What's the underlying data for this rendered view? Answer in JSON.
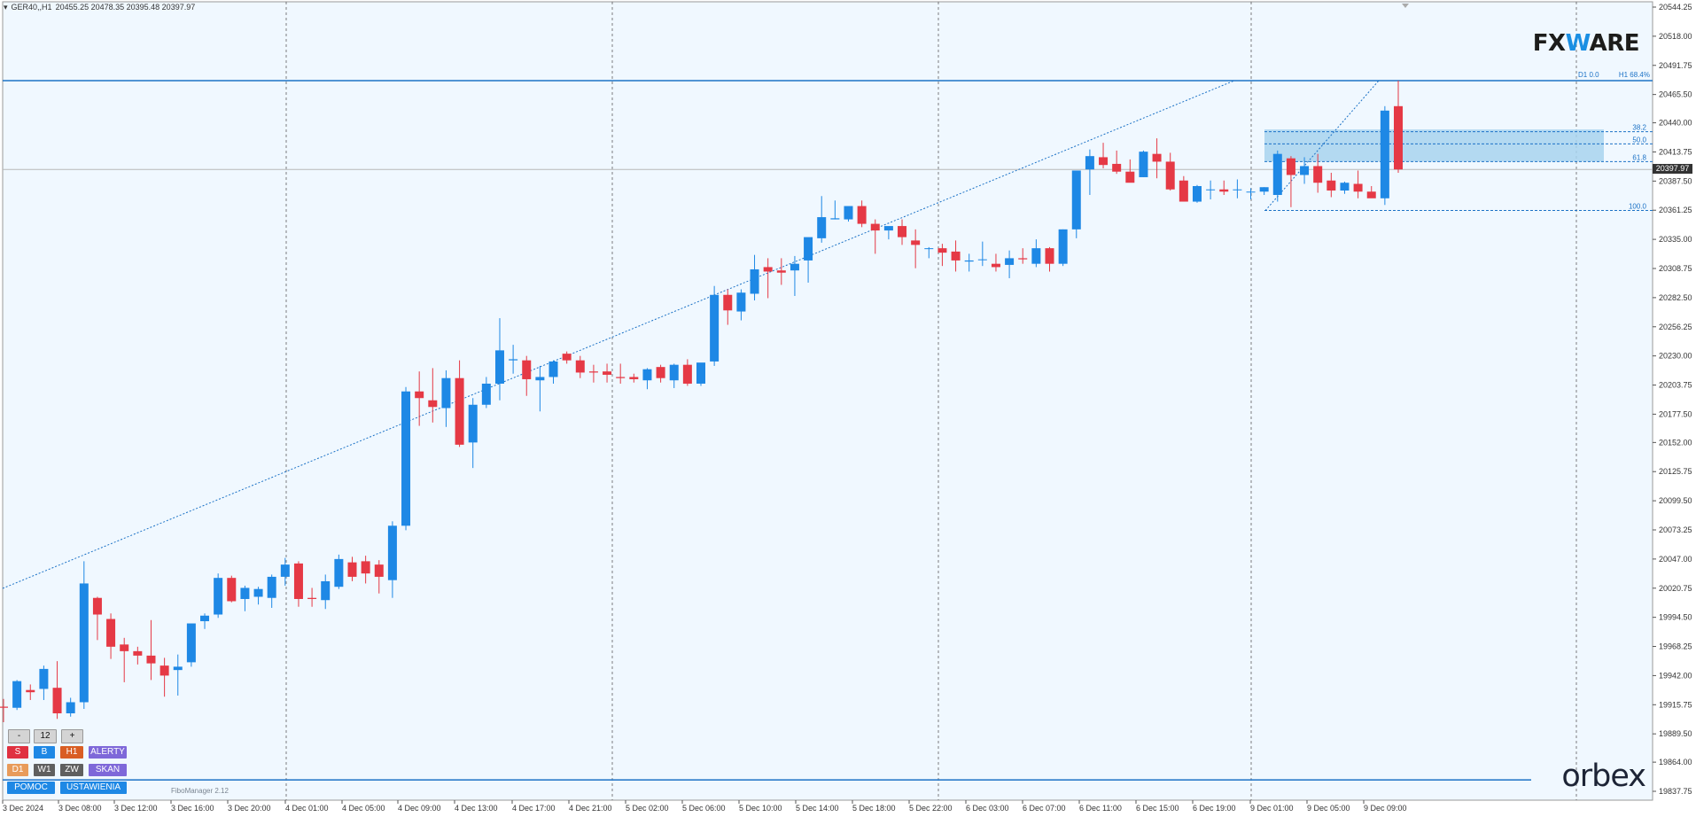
{
  "header": {
    "symbol": "GER40,,H1",
    "quote": "20455.25 20478.35 20395.48 20397.97"
  },
  "logos": {
    "top_right_prefix": "FX",
    "top_right_accent": "W",
    "top_right_suffix": "ARE",
    "bottom_right": "orbex"
  },
  "colors": {
    "background": "#f0f8ff",
    "bull": "#1e88e5",
    "bear": "#e53945",
    "grid": "#4a4a4a",
    "fib_line": "#1c72c6",
    "fib_zone": "#a8d4ef",
    "price_line": "#b8b8b8",
    "panel_red": "#e03140",
    "panel_blue": "#1e88e5",
    "panel_orange": "#d95e23",
    "panel_purple": "#7e68d9",
    "panel_peach": "#e89b5a",
    "panel_gray": "#5f5f5f"
  },
  "panel": {
    "minus": "-",
    "count": "12",
    "plus": "+",
    "sell": "S",
    "buy": "B",
    "tf_h1": "H1",
    "alerts": "ALERTY",
    "tf_d1": "D1",
    "tf_w1": "W1",
    "zw": "ZW",
    "scan": "SKAN",
    "help": "POMOC",
    "settings": "USTAWIENIA",
    "fibo_manager": "FiboManager 2.12"
  },
  "chart_data": {
    "type": "candlestick",
    "timeframe": "H1",
    "ylim": [
      19825,
      20555
    ],
    "y_ticks": [
      "20544.25",
      "20518.00",
      "20491.75",
      "20465.50",
      "20440.00",
      "20413.75",
      "20387.50",
      "20361.25",
      "20335.00",
      "20308.75",
      "20282.50",
      "20256.25",
      "20230.00",
      "20203.75",
      "20177.50",
      "20152.00",
      "20125.75",
      "20099.50",
      "20073.25",
      "20047.00",
      "20020.75",
      "19994.50",
      "19968.25",
      "19942.00",
      "19915.75",
      "19889.50",
      "19864.00",
      "19837.75"
    ],
    "x_labels": [
      "3 Dec 2024",
      "3 Dec 08:00",
      "3 Dec 12:00",
      "3 Dec 16:00",
      "3 Dec 20:00",
      "4 Dec 01:00",
      "4 Dec 05:00",
      "4 Dec 09:00",
      "4 Dec 13:00",
      "4 Dec 17:00",
      "4 Dec 21:00",
      "5 Dec 02:00",
      "5 Dec 06:00",
      "5 Dec 10:00",
      "5 Dec 14:00",
      "5 Dec 18:00",
      "5 Dec 22:00",
      "6 Dec 03:00",
      "6 Dec 07:00",
      "6 Dec 11:00",
      "6 Dec 15:00",
      "6 Dec 19:00",
      "9 Dec 01:00",
      "9 Dec 05:00",
      "9 Dec 09:00"
    ],
    "current_price": "20397.97",
    "fib_levels": [
      {
        "label": "38.2",
        "price": 20432
      },
      {
        "label": "50.0",
        "price": 20421
      },
      {
        "label": "61.8",
        "price": 20405
      },
      {
        "label": "100.0",
        "price": 20361
      }
    ],
    "fib_top_labels": {
      "left": "D1 0.0",
      "right": "H1 68.4%"
    },
    "fib_high": 20478,
    "fib_low": 20361,
    "fib_zone": [
      20405,
      20434
    ],
    "bottom_level": 19848,
    "candles": [
      [
        19914,
        19921,
        19900,
        19913
      ],
      [
        19913,
        19938,
        19911,
        19937
      ],
      [
        19929,
        19934,
        19920,
        19927
      ],
      [
        19930,
        19951,
        19920,
        19948
      ],
      [
        19931,
        19955,
        19903,
        19908
      ],
      [
        19908,
        19922,
        19905,
        19918
      ],
      [
        19918,
        20045,
        19912,
        20025
      ],
      [
        20012,
        20013,
        19974,
        19997
      ],
      [
        19993,
        19998,
        19957,
        19968
      ],
      [
        19970,
        19976,
        19936,
        19964
      ],
      [
        19964,
        19968,
        19952,
        19960
      ],
      [
        19960,
        19992,
        19938,
        19953
      ],
      [
        19951,
        19958,
        19923,
        19942
      ],
      [
        19947,
        19961,
        19924,
        19950
      ],
      [
        19954,
        19988,
        19950,
        19989
      ],
      [
        19991,
        19998,
        19984,
        19996
      ],
      [
        19997,
        20034,
        19994,
        20030
      ],
      [
        20030,
        20032,
        20008,
        20009
      ],
      [
        20011,
        20023,
        20000,
        20021
      ],
      [
        20013,
        20022,
        20006,
        20020
      ],
      [
        20012,
        20033,
        20003,
        20031
      ],
      [
        20031,
        20048,
        20023,
        20042
      ],
      [
        20043,
        20045,
        20004,
        20011
      ],
      [
        20012,
        20021,
        20004,
        20011
      ],
      [
        20010,
        20033,
        20002,
        20027
      ],
      [
        20022,
        20051,
        20020,
        20047
      ],
      [
        20044,
        20049,
        20027,
        20031
      ],
      [
        20045,
        20050,
        20025,
        20034
      ],
      [
        20042,
        20046,
        20016,
        20031
      ],
      [
        20028,
        20081,
        20012,
        20077
      ],
      [
        20077,
        20202,
        20073,
        20198
      ],
      [
        20198,
        20216,
        20167,
        20192
      ],
      [
        20190,
        20219,
        20170,
        20184
      ],
      [
        20183,
        20217,
        20166,
        20210
      ],
      [
        20210,
        20226,
        20148,
        20150
      ],
      [
        20152,
        20192,
        20129,
        20186
      ],
      [
        20186,
        20211,
        20183,
        20205
      ],
      [
        20205,
        20264,
        20190,
        20235
      ],
      [
        20226,
        20240,
        20214,
        20227
      ],
      [
        20226,
        20230,
        20194,
        20209
      ],
      [
        20208,
        20221,
        20180,
        20211
      ],
      [
        20211,
        20226,
        20205,
        20225
      ],
      [
        20232,
        20234,
        20223,
        20226
      ],
      [
        20226,
        20230,
        20210,
        20215
      ],
      [
        20216,
        20222,
        20206,
        20215
      ],
      [
        20216,
        20223,
        20206,
        20213
      ],
      [
        20211,
        20223,
        20205,
        20210
      ],
      [
        20211,
        20214,
        20206,
        20209
      ],
      [
        20208,
        20219,
        20200,
        20218
      ],
      [
        20220,
        20222,
        20206,
        20210
      ],
      [
        20208,
        20223,
        20201,
        20222
      ],
      [
        20222,
        20227,
        20203,
        20205
      ],
      [
        20205,
        20223,
        20203,
        20224
      ],
      [
        20225,
        20293,
        20221,
        20285
      ],
      [
        20285,
        20290,
        20258,
        20271
      ],
      [
        20270,
        20290,
        20262,
        20287
      ],
      [
        20286,
        20321,
        20280,
        20308
      ],
      [
        20310,
        20318,
        20282,
        20306
      ],
      [
        20307,
        20318,
        20294,
        20305
      ],
      [
        20307,
        20320,
        20284,
        20313
      ],
      [
        20316,
        20333,
        20296,
        20337
      ],
      [
        20336,
        20374,
        20332,
        20355
      ],
      [
        20353,
        20370,
        20353,
        20354
      ],
      [
        20353,
        20361,
        20351,
        20365
      ],
      [
        20365,
        20370,
        20346,
        20349
      ],
      [
        20349,
        20353,
        20322,
        20343
      ],
      [
        20343,
        20343,
        20335,
        20347
      ],
      [
        20347,
        20353,
        20330,
        20337
      ],
      [
        20334,
        20344,
        20309,
        20330
      ],
      [
        20327,
        20328,
        20318,
        20327
      ],
      [
        20327,
        20331,
        20311,
        20323
      ],
      [
        20324,
        20334,
        20306,
        20316
      ],
      [
        20315,
        20322,
        20306,
        20316
      ],
      [
        20317,
        20333,
        20311,
        20317
      ],
      [
        20313,
        20322,
        20306,
        20310
      ],
      [
        20312,
        20325,
        20300,
        20318
      ],
      [
        20318,
        20327,
        20313,
        20317
      ],
      [
        20313,
        20335,
        20310,
        20327
      ],
      [
        20327,
        20328,
        20306,
        20313
      ],
      [
        20313,
        20344,
        20311,
        20344
      ],
      [
        20344,
        20396,
        20336,
        20397
      ],
      [
        20398,
        20416,
        20375,
        20410
      ],
      [
        20409,
        20422,
        20399,
        20402
      ],
      [
        20403,
        20415,
        20394,
        20396
      ],
      [
        20396,
        20407,
        20387,
        20386
      ],
      [
        20391,
        20415,
        20391,
        20414
      ],
      [
        20412,
        20426,
        20390,
        20405
      ],
      [
        20405,
        20413,
        20379,
        20380
      ],
      [
        20388,
        20392,
        20369,
        20369
      ],
      [
        20369,
        20384,
        20368,
        20383
      ],
      [
        20380,
        20388,
        20371,
        20380
      ],
      [
        20380,
        20388,
        20375,
        20378
      ],
      [
        20380,
        20389,
        20372,
        20380
      ],
      [
        20378,
        20381,
        20371,
        20378
      ],
      [
        20378,
        20382,
        20375,
        20382
      ],
      [
        20375,
        20415,
        20369,
        20412
      ],
      [
        20408,
        20410,
        20364,
        20393
      ],
      [
        20393,
        20409,
        20385,
        20401
      ],
      [
        20401,
        20412,
        20377,
        20386
      ],
      [
        20388,
        20395,
        20373,
        20379
      ],
      [
        20379,
        20387,
        20376,
        20386
      ],
      [
        20385,
        20397,
        20372,
        20378
      ],
      [
        20378,
        20383,
        20374,
        20372
      ],
      [
        20372,
        20455,
        20366,
        20451
      ],
      [
        20455,
        20478,
        20395,
        20398
      ]
    ]
  }
}
